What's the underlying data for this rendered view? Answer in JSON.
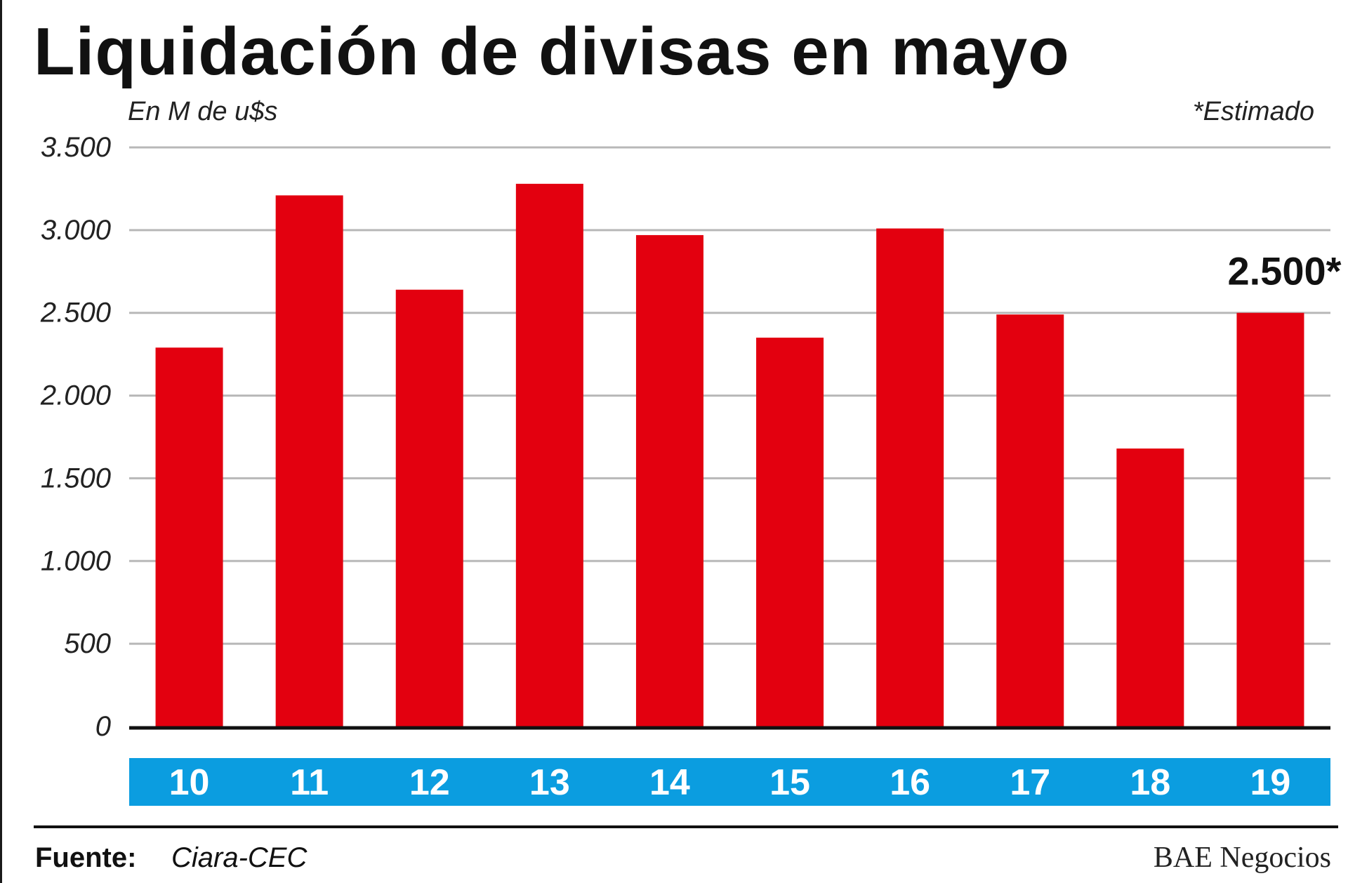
{
  "chart_data": {
    "type": "bar",
    "title": "Liquidación de divisas en mayo",
    "unit_label": "En M de u$s",
    "note": "*Estimado",
    "categories": [
      "10",
      "11",
      "12",
      "13",
      "14",
      "15",
      "16",
      "17",
      "18",
      "19"
    ],
    "values": [
      2290,
      3210,
      2640,
      3280,
      2970,
      2350,
      3010,
      2490,
      1680,
      2500
    ],
    "estimated": [
      false,
      false,
      false,
      false,
      false,
      false,
      false,
      false,
      false,
      true
    ],
    "annotation": {
      "category": "19",
      "text": "2.500*"
    },
    "ylim": [
      0,
      3500
    ],
    "y_ticks": [
      0,
      500,
      1000,
      1500,
      2000,
      2500,
      3000,
      3500
    ],
    "y_tick_labels": [
      "0",
      "500",
      "1.000",
      "1.500",
      "2.000",
      "2.500",
      "3.000",
      "3.500"
    ],
    "grid": true,
    "colors": {
      "bar": "#e3000f",
      "category_band": "#0b9de0",
      "category_text": "#ffffff",
      "grid": "#b8b8b8"
    }
  },
  "footer": {
    "source_label": "Fuente:",
    "source_value": "Ciara-CEC",
    "brand": "BAE Negocios"
  }
}
